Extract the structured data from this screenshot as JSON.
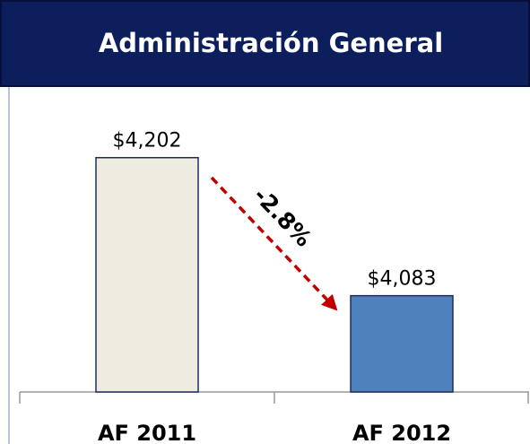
{
  "chart_data": {
    "type": "bar",
    "title": "Administración General",
    "categories": [
      "AF 2011",
      "AF 2012"
    ],
    "values": [
      4202,
      4083
    ],
    "value_labels": [
      "$4,202",
      "$4,083"
    ],
    "colors": [
      "#eeece1",
      "#4f81bd"
    ],
    "ylim": [
      4000,
      4300
    ],
    "annotation": "-2.8%"
  }
}
